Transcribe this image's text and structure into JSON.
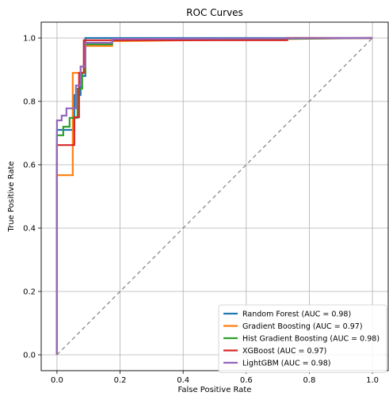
{
  "chart_data": {
    "type": "line",
    "title": "ROC Curves",
    "xlabel": "False Positive Rate",
    "ylabel": "True Positive Rate",
    "xlim": [
      -0.05,
      1.05
    ],
    "ylim": [
      -0.05,
      1.05
    ],
    "x_ticks": [
      "0.0",
      "0.2",
      "0.4",
      "0.6",
      "0.8",
      "1.0"
    ],
    "y_ticks": [
      "0.0",
      "0.2",
      "0.4",
      "0.6",
      "0.8",
      "1.0"
    ],
    "grid": true,
    "legend_position": "lower-right",
    "reference_line": {
      "x": [
        0,
        1
      ],
      "y": [
        0,
        1
      ],
      "style": "dashed",
      "color": "#808080"
    },
    "series": [
      {
        "name": "Random Forest (AUC = 0.98)",
        "color": "#1f77b4",
        "x": [
          0,
          0,
          0.055,
          0.055,
          0.075,
          0.075,
          0.09,
          0.09,
          1.0
        ],
        "y": [
          0,
          0.71,
          0.71,
          0.82,
          0.82,
          0.88,
          0.88,
          1.0,
          1.0
        ]
      },
      {
        "name": "Gradient Boosting (AUC = 0.97)",
        "color": "#ff7f0e",
        "x": [
          0,
          0,
          0.05,
          0.05,
          0.075,
          0.075,
          0.09,
          0.09,
          0.175,
          0.175,
          1.0
        ],
        "y": [
          0,
          0.567,
          0.567,
          0.89,
          0.89,
          0.91,
          0.91,
          0.975,
          0.975,
          0.99,
          1.0
        ]
      },
      {
        "name": "Hist Gradient Boosting (AUC = 0.98)",
        "color": "#2ca02c",
        "x": [
          0,
          0,
          0.02,
          0.02,
          0.04,
          0.04,
          0.065,
          0.065,
          0.08,
          0.08,
          0.09,
          0.09,
          0.175,
          0.175,
          1.0
        ],
        "y": [
          0,
          0.693,
          0.693,
          0.72,
          0.72,
          0.748,
          0.748,
          0.84,
          0.84,
          0.89,
          0.89,
          0.98,
          0.98,
          0.993,
          1.0
        ]
      },
      {
        "name": "XGBoost (AUC = 0.97)",
        "color": "#d62728",
        "x": [
          0,
          0,
          0.055,
          0.055,
          0.07,
          0.07,
          0.085,
          0.085,
          0.73,
          0.73,
          1.0
        ],
        "y": [
          0,
          0.662,
          0.662,
          0.75,
          0.75,
          0.89,
          0.89,
          0.993,
          0.993,
          1.0,
          1.0
        ]
      },
      {
        "name": "LightGBM (AUC = 0.98)",
        "color": "#9467bd",
        "x": [
          0,
          0,
          0.015,
          0.015,
          0.03,
          0.03,
          0.06,
          0.06,
          0.075,
          0.075,
          0.09,
          0.09,
          0.175,
          0.175,
          1.0
        ],
        "y": [
          0,
          0.74,
          0.74,
          0.755,
          0.755,
          0.778,
          0.778,
          0.85,
          0.85,
          0.91,
          0.91,
          0.985,
          0.985,
          0.997,
          1.0
        ]
      }
    ]
  }
}
